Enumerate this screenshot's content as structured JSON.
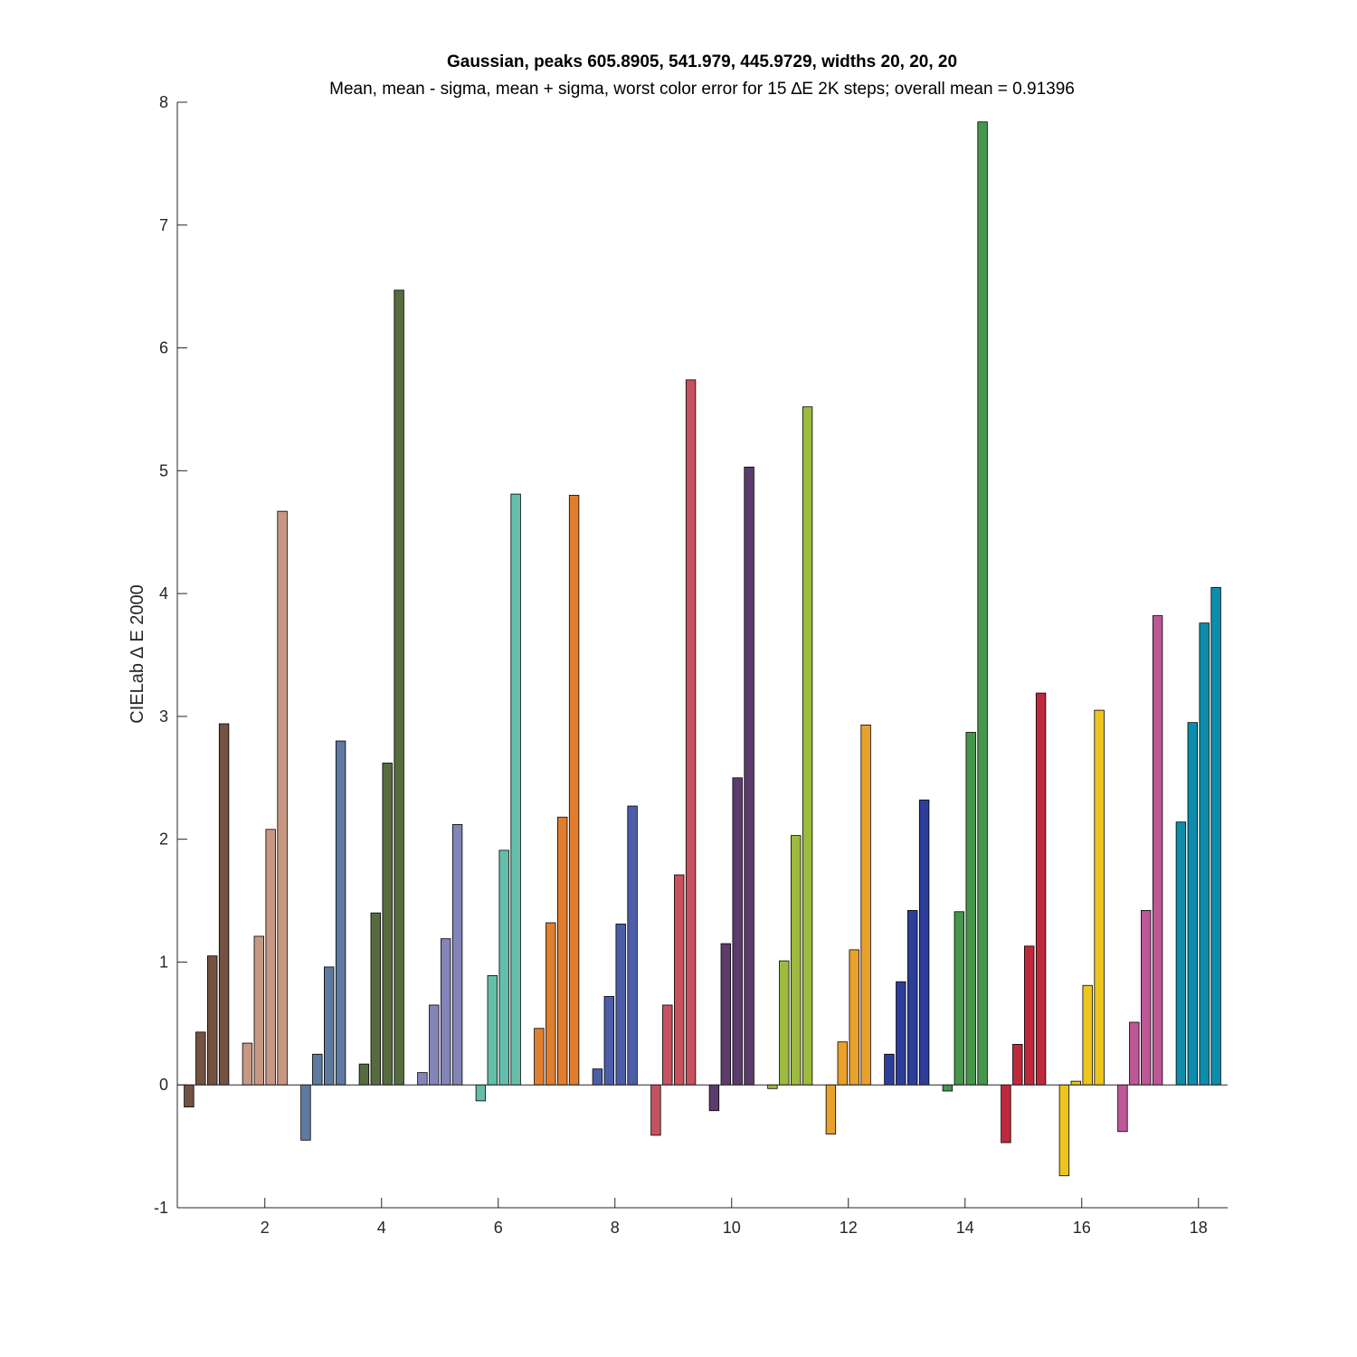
{
  "chart_data": {
    "type": "bar",
    "title": "Gaussian, peaks 605.8905, 541.979, 445.9729, widths 20, 20, 20",
    "subtitle": "Mean, mean - sigma, mean + sigma, worst color error for 15 ∆E 2K steps; overall mean = 0.91396",
    "xlabel": "",
    "ylabel": "CIELab ∆ E 2000",
    "xlim": [
      0.5,
      18.5
    ],
    "ylim": [
      -1,
      8
    ],
    "x_ticks": [
      "2",
      "4",
      "6",
      "8",
      "10",
      "12",
      "14",
      "16",
      "18"
    ],
    "y_ticks": [
      "-1",
      "0",
      "1",
      "2",
      "3",
      "4",
      "5",
      "6",
      "7",
      "8"
    ],
    "grid": false,
    "series_order": [
      "mean - sigma",
      "mean",
      "mean + sigma",
      "worst"
    ],
    "groups": [
      {
        "x": 1,
        "color": "#735242",
        "values": [
          -0.18,
          0.43,
          1.05,
          2.94
        ]
      },
      {
        "x": 2,
        "color": "#C69882",
        "values": [
          0.34,
          1.21,
          2.08,
          4.67
        ]
      },
      {
        "x": 3,
        "color": "#5E7AA0",
        "values": [
          -0.45,
          0.25,
          0.96,
          2.8
        ]
      },
      {
        "x": 4,
        "color": "#566C3F",
        "values": [
          0.17,
          1.4,
          2.62,
          6.47
        ]
      },
      {
        "x": 5,
        "color": "#8384B8",
        "values": [
          0.1,
          0.65,
          1.19,
          2.12
        ]
      },
      {
        "x": 6,
        "color": "#64BEAA",
        "values": [
          -0.13,
          0.89,
          1.91,
          4.81
        ]
      },
      {
        "x": 7,
        "color": "#E07E2F",
        "values": [
          0.46,
          1.32,
          2.18,
          4.8
        ]
      },
      {
        "x": 8,
        "color": "#4C5DA8",
        "values": [
          0.13,
          0.72,
          1.31,
          2.27
        ]
      },
      {
        "x": 9,
        "color": "#C6525F",
        "values": [
          -0.41,
          0.65,
          1.71,
          5.74
        ]
      },
      {
        "x": 10,
        "color": "#5C3C6C",
        "values": [
          -0.21,
          1.15,
          2.5,
          5.03
        ]
      },
      {
        "x": 11,
        "color": "#9DBB3E",
        "values": [
          -0.03,
          1.01,
          2.03,
          5.52
        ]
      },
      {
        "x": 12,
        "color": "#E9A12C",
        "values": [
          -0.4,
          0.35,
          1.1,
          2.93
        ]
      },
      {
        "x": 13,
        "color": "#2D3E9A",
        "values": [
          0.25,
          0.84,
          1.42,
          2.32
        ]
      },
      {
        "x": 14,
        "color": "#45954A",
        "values": [
          -0.05,
          1.41,
          2.87,
          7.84
        ]
      },
      {
        "x": 15,
        "color": "#BE2A3C",
        "values": [
          -0.47,
          0.33,
          1.13,
          3.19
        ]
      },
      {
        "x": 16,
        "color": "#EDC51F",
        "values": [
          -0.74,
          0.03,
          0.81,
          3.05
        ]
      },
      {
        "x": 17,
        "color": "#BD5796",
        "values": [
          -0.38,
          0.51,
          1.42,
          3.82
        ]
      },
      {
        "x": 18,
        "color": "#0D8DAB",
        "values": [
          2.14,
          2.95,
          3.76,
          4.05
        ]
      }
    ]
  }
}
